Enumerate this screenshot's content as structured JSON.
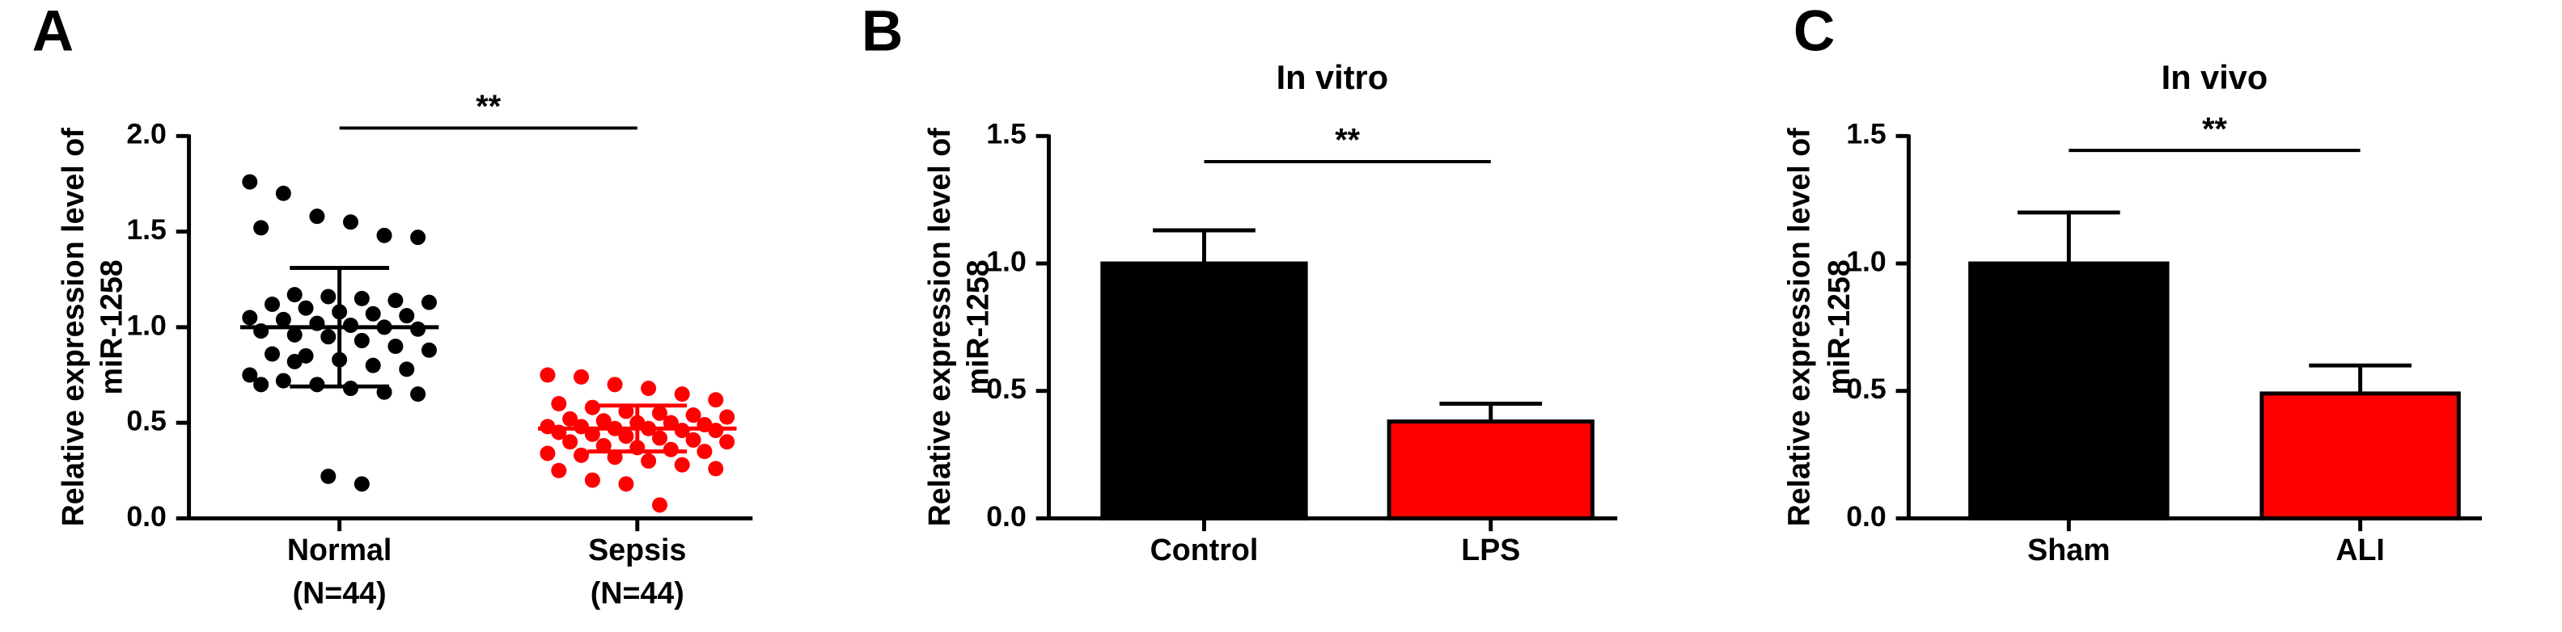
{
  "chart_data": [
    {
      "type": "strip",
      "panel_label": "A",
      "categories": [
        "Normal",
        "Sepsis"
      ],
      "category_sublabels": [
        "(N=44)",
        "(N=44)"
      ],
      "groups": [
        {
          "color": "#000000",
          "mean": 1.0,
          "sd": 0.31,
          "values": [
            1.76,
            1.7,
            1.58,
            1.55,
            1.48,
            1.47,
            1.52,
            1.17,
            1.16,
            1.15,
            1.14,
            1.13,
            1.12,
            1.1,
            1.08,
            1.07,
            1.06,
            1.05,
            1.04,
            1.02,
            1.01,
            1.0,
            0.99,
            0.98,
            0.96,
            0.95,
            0.93,
            0.9,
            0.88,
            0.86,
            0.85,
            0.83,
            0.8,
            0.78,
            0.75,
            0.72,
            0.7,
            0.68,
            0.66,
            0.65,
            0.7,
            0.82,
            0.22,
            0.18
          ]
        },
        {
          "color": "#ff0000",
          "mean": 0.47,
          "sd": 0.12,
          "values": [
            0.75,
            0.74,
            0.7,
            0.68,
            0.65,
            0.62,
            0.6,
            0.58,
            0.56,
            0.55,
            0.54,
            0.53,
            0.52,
            0.51,
            0.5,
            0.5,
            0.49,
            0.48,
            0.48,
            0.47,
            0.47,
            0.46,
            0.46,
            0.45,
            0.44,
            0.43,
            0.42,
            0.41,
            0.4,
            0.4,
            0.38,
            0.37,
            0.36,
            0.35,
            0.34,
            0.33,
            0.32,
            0.3,
            0.28,
            0.26,
            0.25,
            0.2,
            0.18,
            0.07
          ]
        }
      ],
      "ylabel": [
        "Relative expression level of",
        "miR-1258"
      ],
      "ylim": [
        0,
        2.0
      ],
      "yticks": [
        {
          "value": 0,
          "label": "0.0"
        },
        {
          "value": 0.5,
          "label": "0.5"
        },
        {
          "value": 1.0,
          "label": "1.0"
        },
        {
          "value": 1.5,
          "label": "1.5"
        },
        {
          "value": 2.0,
          "label": "2.0"
        }
      ],
      "annotation": "**"
    },
    {
      "type": "bar",
      "panel_label": "B",
      "title": "In vitro",
      "categories": [
        "Control",
        "LPS"
      ],
      "values": [
        1.0,
        0.38
      ],
      "errors": [
        0.13,
        0.07
      ],
      "colors": [
        "#000000",
        "#ff0000"
      ],
      "ylabel": [
        "Relative expression level of",
        "miR-1258"
      ],
      "ylim": [
        0,
        1.5
      ],
      "yticks": [
        {
          "value": 0,
          "label": "0.0"
        },
        {
          "value": 0.5,
          "label": "0.5"
        },
        {
          "value": 1.0,
          "label": "1.0"
        },
        {
          "value": 1.5,
          "label": "1.5"
        }
      ],
      "annotation": "**"
    },
    {
      "type": "bar",
      "panel_label": "C",
      "title": "In vivo",
      "categories": [
        "Sham",
        "ALI"
      ],
      "values": [
        1.0,
        0.49
      ],
      "errors": [
        0.2,
        0.11
      ],
      "colors": [
        "#000000",
        "#ff0000"
      ],
      "ylabel": [
        "Relative expression level of",
        "miR-1258"
      ],
      "ylim": [
        0,
        1.5
      ],
      "yticks": [
        {
          "value": 0,
          "label": "0.0"
        },
        {
          "value": 0.5,
          "label": "0.5"
        },
        {
          "value": 1.0,
          "label": "1.0"
        },
        {
          "value": 1.5,
          "label": "1.5"
        }
      ],
      "annotation": "**"
    }
  ]
}
